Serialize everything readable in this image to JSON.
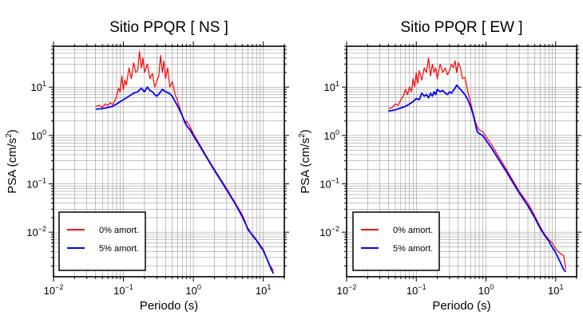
{
  "chart_data": [
    {
      "type": "line",
      "title": "Sitio PPQR [ NS ]",
      "xlabel": "Periodo (s)",
      "ylabel_main": "PSA (cm/s",
      "ylabel_sup": "2",
      "ylabel_end": ")",
      "xscale": "log",
      "yscale": "log",
      "xlim": [
        0.01,
        20
      ],
      "ylim": [
        0.0012,
        70
      ],
      "grid": true,
      "legend_position": "bottom-left",
      "x_ticks": [
        {
          "value": 0.01,
          "base": "10",
          "exp": "−2"
        },
        {
          "value": 0.1,
          "base": "10",
          "exp": "−1"
        },
        {
          "value": 1,
          "base": "10",
          "exp": "0"
        },
        {
          "value": 10,
          "base": "10",
          "exp": "1"
        }
      ],
      "y_ticks": [
        {
          "value": 0.01,
          "base": "10",
          "exp": "−2"
        },
        {
          "value": 0.1,
          "base": "10",
          "exp": "−1"
        },
        {
          "value": 1,
          "base": "10",
          "exp": "0"
        },
        {
          "value": 10,
          "base": "10",
          "exp": "1"
        }
      ],
      "series": [
        {
          "name": "0% amort.",
          "color": "#ff0000",
          "points": [
            [
              0.04,
              4.0
            ],
            [
              0.045,
              4.2
            ],
            [
              0.05,
              3.8
            ],
            [
              0.055,
              4.5
            ],
            [
              0.06,
              4.2
            ],
            [
              0.065,
              4.8
            ],
            [
              0.07,
              4.3
            ],
            [
              0.075,
              5.2
            ],
            [
              0.08,
              6.5
            ],
            [
              0.085,
              9.5
            ],
            [
              0.09,
              8.0
            ],
            [
              0.095,
              17
            ],
            [
              0.1,
              9
            ],
            [
              0.105,
              14
            ],
            [
              0.11,
              11
            ],
            [
              0.12,
              25
            ],
            [
              0.13,
              15
            ],
            [
              0.14,
              32
            ],
            [
              0.15,
              20
            ],
            [
              0.16,
              22
            ],
            [
              0.17,
              55
            ],
            [
              0.18,
              25
            ],
            [
              0.19,
              40
            ],
            [
              0.2,
              20
            ],
            [
              0.22,
              30
            ],
            [
              0.24,
              15
            ],
            [
              0.26,
              19
            ],
            [
              0.28,
              10
            ],
            [
              0.3,
              13
            ],
            [
              0.32,
              17
            ],
            [
              0.34,
              45
            ],
            [
              0.36,
              20
            ],
            [
              0.38,
              35
            ],
            [
              0.4,
              15
            ],
            [
              0.43,
              25
            ],
            [
              0.46,
              10
            ],
            [
              0.5,
              13
            ],
            [
              0.55,
              7
            ],
            [
              0.6,
              5
            ],
            [
              0.65,
              3.5
            ],
            [
              0.7,
              2.5
            ],
            [
              0.75,
              1.8
            ],
            [
              0.8,
              2.0
            ],
            [
              0.9,
              1.5
            ],
            [
              1.0,
              1.1
            ],
            [
              1.2,
              0.7
            ],
            [
              1.5,
              0.4
            ],
            [
              2,
              0.2
            ],
            [
              3,
              0.08
            ],
            [
              4,
              0.04
            ],
            [
              5,
              0.023
            ],
            [
              5.5,
              0.017
            ],
            [
              6,
              0.011
            ],
            [
              7,
              0.009
            ],
            [
              8,
              0.007
            ],
            [
              9,
              0.0055
            ],
            [
              10,
              0.0045
            ],
            [
              12,
              0.0022
            ],
            [
              13,
              0.0019
            ],
            [
              14,
              0.0016
            ]
          ]
        },
        {
          "name": "5% amort.",
          "color": "#0000ff",
          "points": [
            [
              0.04,
              3.5
            ],
            [
              0.05,
              3.6
            ],
            [
              0.06,
              3.8
            ],
            [
              0.07,
              4.0
            ],
            [
              0.08,
              4.5
            ],
            [
              0.09,
              5.0
            ],
            [
              0.1,
              5.5
            ],
            [
              0.12,
              6.5
            ],
            [
              0.14,
              7.5
            ],
            [
              0.16,
              8.0
            ],
            [
              0.18,
              9.5
            ],
            [
              0.2,
              8.0
            ],
            [
              0.22,
              10
            ],
            [
              0.24,
              8.5
            ],
            [
              0.26,
              8.0
            ],
            [
              0.28,
              7.0
            ],
            [
              0.3,
              6.5
            ],
            [
              0.33,
              7.5
            ],
            [
              0.36,
              9.0
            ],
            [
              0.4,
              8.0
            ],
            [
              0.45,
              7.5
            ],
            [
              0.5,
              6.5
            ],
            [
              0.55,
              5.0
            ],
            [
              0.6,
              4.0
            ],
            [
              0.7,
              2.5
            ],
            [
              0.8,
              1.6
            ],
            [
              0.9,
              1.3
            ],
            [
              1.0,
              1.0
            ],
            [
              1.2,
              0.65
            ],
            [
              1.5,
              0.38
            ],
            [
              2,
              0.19
            ],
            [
              3,
              0.075
            ],
            [
              4,
              0.038
            ],
            [
              5,
              0.021
            ],
            [
              6,
              0.012
            ],
            [
              7,
              0.0085
            ],
            [
              8,
              0.0068
            ],
            [
              9,
              0.0052
            ],
            [
              10,
              0.0042
            ],
            [
              12,
              0.0023
            ],
            [
              13,
              0.0017
            ],
            [
              14,
              0.0014
            ]
          ]
        }
      ]
    },
    {
      "type": "line",
      "title": "Sitio PPQR [ EW ]",
      "xlabel": "Periodo (s)",
      "ylabel_main": "PSA (cm/s",
      "ylabel_sup": "2",
      "ylabel_end": ")",
      "xscale": "log",
      "yscale": "log",
      "xlim": [
        0.01,
        20
      ],
      "ylim": [
        0.0012,
        70
      ],
      "grid": true,
      "legend_position": "bottom-left",
      "x_ticks": [
        {
          "value": 0.01,
          "base": "10",
          "exp": "−2"
        },
        {
          "value": 0.1,
          "base": "10",
          "exp": "−1"
        },
        {
          "value": 1,
          "base": "10",
          "exp": "0"
        },
        {
          "value": 10,
          "base": "10",
          "exp": "1"
        }
      ],
      "y_ticks": [
        {
          "value": 0.01,
          "base": "10",
          "exp": "−2"
        },
        {
          "value": 0.1,
          "base": "10",
          "exp": "−1"
        },
        {
          "value": 1,
          "base": "10",
          "exp": "0"
        },
        {
          "value": 10,
          "base": "10",
          "exp": "1"
        }
      ],
      "series": [
        {
          "name": "0% amort.",
          "color": "#ff0000",
          "points": [
            [
              0.04,
              3.6
            ],
            [
              0.045,
              3.8
            ],
            [
              0.05,
              4.5
            ],
            [
              0.055,
              4.2
            ],
            [
              0.06,
              5.5
            ],
            [
              0.065,
              6.5
            ],
            [
              0.07,
              9
            ],
            [
              0.075,
              7
            ],
            [
              0.08,
              10
            ],
            [
              0.085,
              8
            ],
            [
              0.09,
              15
            ],
            [
              0.095,
              10
            ],
            [
              0.1,
              20
            ],
            [
              0.105,
              12
            ],
            [
              0.11,
              22
            ],
            [
              0.12,
              14
            ],
            [
              0.13,
              25
            ],
            [
              0.14,
              20
            ],
            [
              0.15,
              40
            ],
            [
              0.16,
              17
            ],
            [
              0.17,
              30
            ],
            [
              0.18,
              20
            ],
            [
              0.19,
              25
            ],
            [
              0.2,
              15
            ],
            [
              0.22,
              30
            ],
            [
              0.24,
              20
            ],
            [
              0.26,
              25
            ],
            [
              0.28,
              18
            ],
            [
              0.3,
              22
            ],
            [
              0.32,
              30
            ],
            [
              0.34,
              25
            ],
            [
              0.36,
              35
            ],
            [
              0.38,
              20
            ],
            [
              0.4,
              32
            ],
            [
              0.43,
              25
            ],
            [
              0.46,
              15
            ],
            [
              0.5,
              16
            ],
            [
              0.55,
              8
            ],
            [
              0.6,
              5
            ],
            [
              0.65,
              3.0
            ],
            [
              0.7,
              2.0
            ],
            [
              0.75,
              1.5
            ],
            [
              0.8,
              1.3
            ],
            [
              0.9,
              1.2
            ],
            [
              1.0,
              0.95
            ],
            [
              1.2,
              0.65
            ],
            [
              1.5,
              0.38
            ],
            [
              2,
              0.19
            ],
            [
              3,
              0.07
            ],
            [
              4,
              0.04
            ],
            [
              5,
              0.022
            ],
            [
              6,
              0.013
            ],
            [
              7,
              0.009
            ],
            [
              8,
              0.007
            ],
            [
              9,
              0.006
            ],
            [
              10,
              0.0045
            ],
            [
              12,
              0.0035
            ],
            [
              13,
              0.0033
            ],
            [
              14,
              0.0017
            ]
          ]
        },
        {
          "name": "5% amort.",
          "color": "#0000ff",
          "points": [
            [
              0.04,
              3.2
            ],
            [
              0.05,
              3.4
            ],
            [
              0.06,
              3.7
            ],
            [
              0.07,
              4.0
            ],
            [
              0.08,
              4.5
            ],
            [
              0.09,
              5.0
            ],
            [
              0.1,
              5.8
            ],
            [
              0.11,
              5.5
            ],
            [
              0.12,
              7.5
            ],
            [
              0.13,
              6.5
            ],
            [
              0.14,
              7.0
            ],
            [
              0.15,
              6.0
            ],
            [
              0.16,
              7.5
            ],
            [
              0.17,
              6.5
            ],
            [
              0.18,
              8.0
            ],
            [
              0.19,
              7.0
            ],
            [
              0.2,
              9.0
            ],
            [
              0.22,
              8.0
            ],
            [
              0.24,
              8.5
            ],
            [
              0.26,
              7.5
            ],
            [
              0.28,
              7.0
            ],
            [
              0.3,
              8.0
            ],
            [
              0.32,
              7.5
            ],
            [
              0.34,
              8.5
            ],
            [
              0.36,
              9.5
            ],
            [
              0.38,
              11
            ],
            [
              0.4,
              10
            ],
            [
              0.43,
              9
            ],
            [
              0.46,
              8
            ],
            [
              0.5,
              7
            ],
            [
              0.55,
              5.5
            ],
            [
              0.6,
              4.0
            ],
            [
              0.65,
              2.8
            ],
            [
              0.7,
              1.8
            ],
            [
              0.75,
              1.2
            ],
            [
              0.8,
              1.1
            ],
            [
              0.9,
              1.0
            ],
            [
              1.0,
              0.8
            ],
            [
              1.2,
              0.55
            ],
            [
              1.5,
              0.33
            ],
            [
              2,
              0.17
            ],
            [
              3,
              0.065
            ],
            [
              4,
              0.035
            ],
            [
              5,
              0.02
            ],
            [
              6,
              0.012
            ],
            [
              7,
              0.0085
            ],
            [
              8,
              0.0065
            ],
            [
              9,
              0.0048
            ],
            [
              10,
              0.0038
            ],
            [
              12,
              0.0022
            ],
            [
              13,
              0.0017
            ],
            [
              14,
              0.0015
            ]
          ]
        }
      ]
    }
  ]
}
